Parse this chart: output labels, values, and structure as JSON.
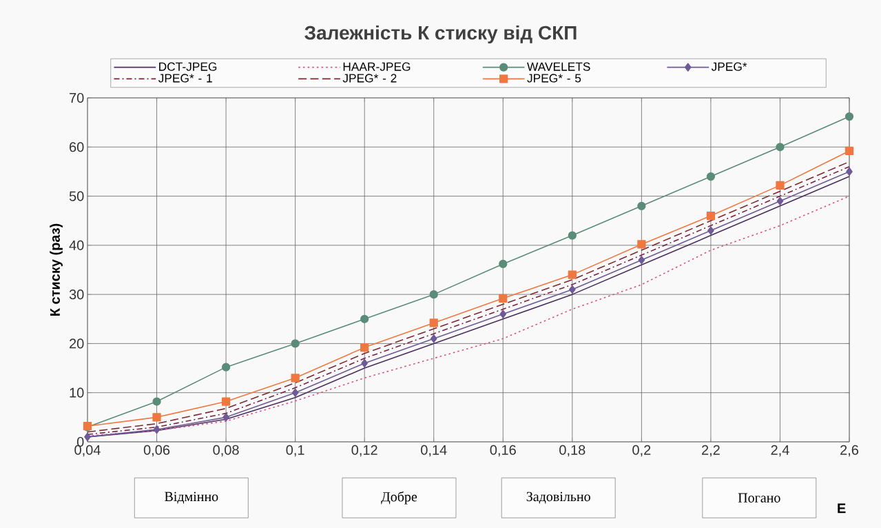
{
  "chart_data": {
    "type": "line",
    "title": "Залежність К стиску від СКП",
    "xlabel": "E",
    "ylabel": "К стиску (раз)",
    "categories": [
      "0,04",
      "0,06",
      "0,08",
      "0,1",
      "0,12",
      "0,14",
      "0,16",
      "0,18",
      "0,2",
      "2,2",
      "2,4",
      "2,6"
    ],
    "series": [
      {
        "name": "DCT-JPEG",
        "color": "#4b2e5e",
        "line_style": "solid",
        "marker": "none",
        "values": [
          1,
          2.3,
          4.6,
          9,
          15,
          20,
          25,
          30,
          36,
          42,
          48,
          54
        ]
      },
      {
        "name": "HAAR-JPEG",
        "color": "#e0508a",
        "line_style": "dotted",
        "marker": "none",
        "values": [
          1.2,
          2.3,
          4.2,
          8.3,
          13,
          17,
          21,
          27,
          32,
          39,
          44,
          50
        ]
      },
      {
        "name": "WAVELETS",
        "color": "#5a8c78",
        "line_style": "solid",
        "marker": "circle",
        "values": [
          3,
          8.2,
          15.2,
          20,
          25,
          30,
          36.2,
          42,
          48,
          54,
          60,
          66.2
        ]
      },
      {
        "name": "JPEG*",
        "color": "#6e5a96",
        "line_style": "solid",
        "marker": "diamond",
        "values": [
          1,
          2.5,
          5,
          10,
          16,
          21,
          26,
          31,
          37,
          43,
          49,
          55
        ]
      },
      {
        "name": "JPEG* - 1",
        "color": "#7a2040",
        "line_style": "dashdot",
        "marker": "none",
        "values": [
          1.5,
          3,
          5.8,
          11,
          17,
          22,
          27,
          32,
          38,
          44,
          50,
          56
        ]
      },
      {
        "name": "JPEG* - 2",
        "color": "#7a2a30",
        "line_style": "dashed",
        "marker": "none",
        "values": [
          2,
          3.7,
          6.8,
          12,
          18,
          23,
          28,
          33,
          39,
          45,
          51,
          57
        ]
      },
      {
        "name": "JPEG* - 5",
        "color": "#f07840",
        "line_style": "solid",
        "marker": "square",
        "values": [
          3.2,
          5,
          8.2,
          13,
          19.2,
          24.2,
          29.2,
          34,
          40.2,
          46,
          52.2,
          59.2
        ]
      }
    ],
    "ylim": [
      0,
      70
    ],
    "yticks": [
      0,
      10,
      20,
      30,
      40,
      50,
      60,
      70
    ],
    "grid": true,
    "legend": "top",
    "annotations": [
      "Відмінно",
      "Добре",
      "Задовільно",
      "Погано"
    ]
  }
}
